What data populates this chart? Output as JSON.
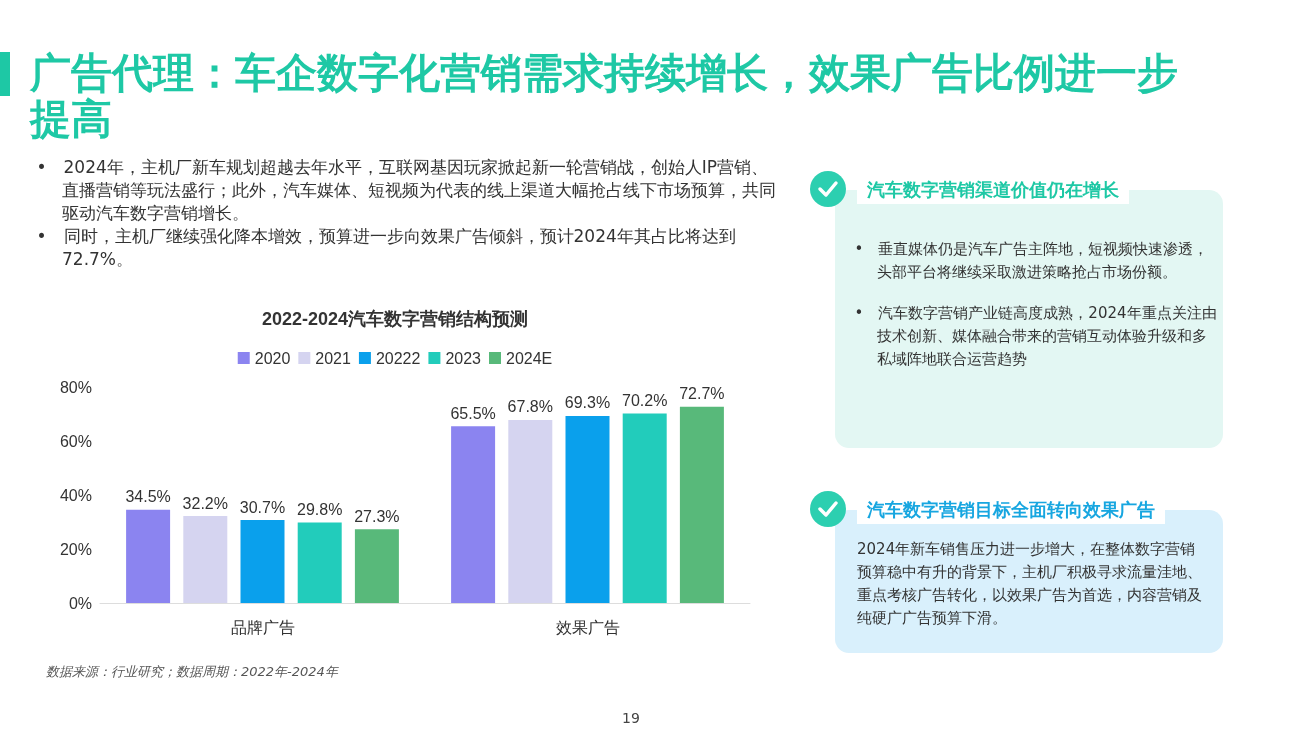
{
  "chart_data": [
    {
      "type": "other",
      "title": "广告代理：车企数字化营销需求持续增长，效果广告比例进一步提高",
      "annotations": [
        "•　2024年，主机厂新车规划超越去年水平，互联网基因玩家掀起新一轮营销战，创始人IP营销、直播营销等玩法盛行；此外，汽车媒体、短视频为代表的线上渠道大幅抢占线下市场预算，共同驱动汽车数字营销增长。",
        "•　同时，主机厂继续强化降本增效，预算进一步向效果广告倾斜，预计2024年其占比将达到72.7%。"
      ]
    },
    {
      "type": "bar",
      "title": "2022-2024汽车数字营销结构预测",
      "categories": [
        "品牌广告",
        "效果广告"
      ],
      "ylim": [
        0,
        80
      ],
      "yticks": [
        {
          "value": 0,
          "label": "0%"
        },
        {
          "value": 20,
          "label": "20%"
        },
        {
          "value": 40,
          "label": "40%"
        },
        {
          "value": 60,
          "label": "60%"
        },
        {
          "value": 80,
          "label": "80%"
        }
      ],
      "grid": false,
      "legend": "top",
      "series": [
        {
          "name": "2020",
          "color": "#8b84f0",
          "values": [
            34.5,
            65.5
          ],
          "value_labels": [
            "34.5%",
            "65.5%"
          ]
        },
        {
          "name": "2021",
          "color": "#d5d4f0",
          "values": [
            32.2,
            67.8
          ],
          "value_labels": [
            "32.2%",
            "67.8%"
          ]
        },
        {
          "name": "20222",
          "color": "#0aa0ec",
          "values": [
            30.7,
            69.3
          ],
          "value_labels": [
            "30.7%",
            "69.3%"
          ]
        },
        {
          "name": "2023",
          "color": "#22ccbb",
          "values": [
            29.8,
            70.2
          ],
          "value_labels": [
            "29.8%",
            "70.2%"
          ]
        },
        {
          "name": "2024E",
          "color": "#58b97a",
          "values": [
            27.3,
            72.7
          ],
          "value_labels": [
            "27.3%",
            "72.7%"
          ]
        }
      ],
      "annotations": [
        "数据来源：行业研究；数据周期：2022年-2024年",
        "19"
      ]
    },
    {
      "type": "other",
      "title": "汽车数字营销渠道价值仍在增长",
      "annotations": [
        "•　垂直媒体仍是汽车广告主阵地，短视频快速渗透，头部平台将继续采取激进策略抢占市场份额。",
        "•　汽车数字营销产业链高度成熟，2024年重点关注由技术创新、媒体融合带来的营销互动体验升级和多私域阵地联合运营趋势"
      ]
    },
    {
      "type": "other",
      "title": "汽车数字营销目标全面转向效果广告",
      "annotations": [
        "2024年新车销售压力进一步增大，在整体数字营销预算稳中有升的背景下，主机厂积极寻求流量洼地、重点考核广告转化，以效果广告为首选，内容营销及纯硬广广告预算下滑。"
      ]
    }
  ]
}
